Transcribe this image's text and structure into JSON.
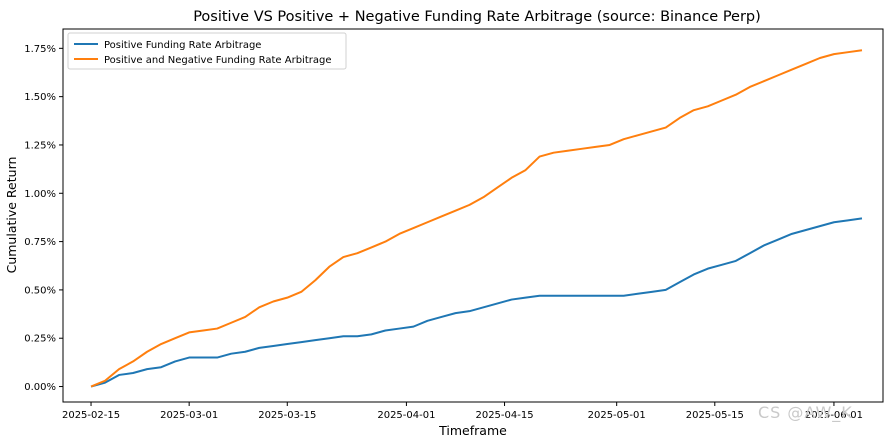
{
  "chart_data": {
    "type": "line",
    "title": "Positive VS Positive + Negative Funding Rate Arbitrage (source: Binance Perp)",
    "xlabel": "Timeframe",
    "ylabel": "Cumulative Return",
    "x_ticks": [
      "2025-02-15",
      "2025-03-01",
      "2025-03-15",
      "2025-04-01",
      "2025-04-15",
      "2025-05-01",
      "2025-05-15",
      "2025-06-01"
    ],
    "y_ticks": [
      "0.00%",
      "0.25%",
      "0.50%",
      "0.75%",
      "1.00%",
      "1.25%",
      "1.50%",
      "1.75%"
    ],
    "xlim": [
      "2025-02-11",
      "2025-06-08"
    ],
    "ylim": [
      -0.08,
      1.85
    ],
    "grid": false,
    "legend_position": "top-left",
    "x": [
      "2025-02-15",
      "2025-02-17",
      "2025-02-19",
      "2025-02-21",
      "2025-02-23",
      "2025-02-25",
      "2025-02-27",
      "2025-03-01",
      "2025-03-03",
      "2025-03-05",
      "2025-03-07",
      "2025-03-09",
      "2025-03-11",
      "2025-03-13",
      "2025-03-15",
      "2025-03-17",
      "2025-03-19",
      "2025-03-21",
      "2025-03-23",
      "2025-03-25",
      "2025-03-27",
      "2025-03-29",
      "2025-03-31",
      "2025-04-02",
      "2025-04-04",
      "2025-04-06",
      "2025-04-08",
      "2025-04-10",
      "2025-04-12",
      "2025-04-14",
      "2025-04-16",
      "2025-04-18",
      "2025-04-20",
      "2025-04-22",
      "2025-04-24",
      "2025-04-26",
      "2025-04-28",
      "2025-04-30",
      "2025-05-02",
      "2025-05-04",
      "2025-05-06",
      "2025-05-08",
      "2025-05-10",
      "2025-05-12",
      "2025-05-14",
      "2025-05-16",
      "2025-05-18",
      "2025-05-20",
      "2025-05-22",
      "2025-05-24",
      "2025-05-26",
      "2025-05-28",
      "2025-05-30",
      "2025-06-01",
      "2025-06-03",
      "2025-06-05"
    ],
    "series": [
      {
        "name": "Positive Funding Rate Arbitrage",
        "color": "#1f77b4",
        "values": [
          0.0,
          0.02,
          0.06,
          0.07,
          0.09,
          0.1,
          0.13,
          0.15,
          0.15,
          0.15,
          0.17,
          0.18,
          0.2,
          0.21,
          0.22,
          0.23,
          0.24,
          0.25,
          0.26,
          0.26,
          0.27,
          0.29,
          0.3,
          0.31,
          0.34,
          0.36,
          0.38,
          0.39,
          0.41,
          0.43,
          0.45,
          0.46,
          0.47,
          0.47,
          0.47,
          0.47,
          0.47,
          0.47,
          0.47,
          0.48,
          0.49,
          0.5,
          0.54,
          0.58,
          0.61,
          0.63,
          0.65,
          0.69,
          0.73,
          0.76,
          0.79,
          0.81,
          0.83,
          0.85,
          0.86,
          0.87
        ]
      },
      {
        "name": "Positive and Negative Funding Rate Arbitrage",
        "color": "#ff7f0e",
        "values": [
          0.0,
          0.03,
          0.09,
          0.13,
          0.18,
          0.22,
          0.25,
          0.28,
          0.29,
          0.3,
          0.33,
          0.36,
          0.41,
          0.44,
          0.46,
          0.49,
          0.55,
          0.62,
          0.67,
          0.69,
          0.72,
          0.75,
          0.79,
          0.82,
          0.85,
          0.88,
          0.91,
          0.94,
          0.98,
          1.03,
          1.08,
          1.12,
          1.19,
          1.21,
          1.22,
          1.23,
          1.24,
          1.25,
          1.28,
          1.3,
          1.32,
          1.34,
          1.39,
          1.43,
          1.45,
          1.48,
          1.51,
          1.55,
          1.58,
          1.61,
          1.64,
          1.67,
          1.7,
          1.72,
          1.73,
          1.74
        ]
      }
    ],
    "watermark": "CS @AW_K"
  }
}
